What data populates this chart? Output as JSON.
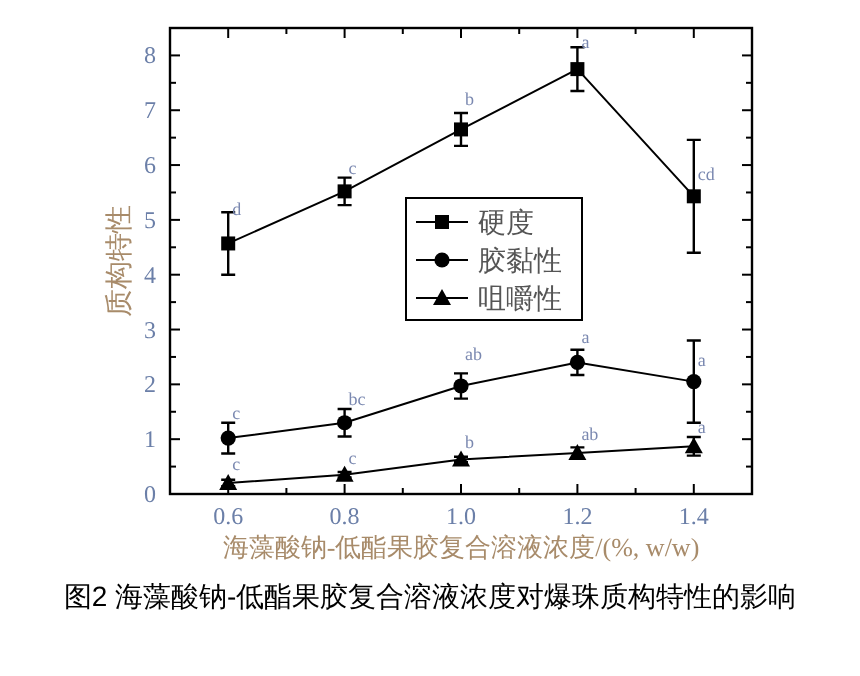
{
  "chart_data": {
    "type": "line",
    "title": "图2  海藻酸钠-低酯果胶复合溶液浓度对爆珠质构特性的影响",
    "xlabel": "海藻酸钠-低酯果胶复合溶液浓度/(%, w/w)",
    "ylabel": "质构特性",
    "x": [
      0.6,
      0.8,
      1.0,
      1.2,
      1.4
    ],
    "series": [
      {
        "name": "硬度",
        "color": "#000000",
        "marker": "square",
        "values": [
          4.57,
          5.52,
          6.65,
          7.75,
          5.43
        ],
        "errors": [
          0.57,
          0.25,
          0.3,
          0.4,
          1.03
        ]
      },
      {
        "name": "胶黏性",
        "color": "#000000",
        "marker": "circle",
        "values": [
          1.02,
          1.3,
          1.97,
          2.4,
          2.05
        ],
        "errors": [
          0.28,
          0.25,
          0.23,
          0.23,
          0.75
        ]
      },
      {
        "name": "咀嚼性",
        "color": "#000000",
        "marker": "triangle",
        "values": [
          0.2,
          0.35,
          0.63,
          0.75,
          0.87
        ],
        "errors": [
          0.06,
          0.05,
          0.05,
          0.1,
          0.17
        ]
      }
    ],
    "xlim": [
      0.5,
      1.5
    ],
    "ylim": [
      0,
      8.5
    ],
    "xticks": [
      {
        "value": 0.6,
        "label": "0.6"
      },
      {
        "value": 0.7,
        "label": null
      },
      {
        "value": 0.8,
        "label": "0.8"
      },
      {
        "value": 0.9,
        "label": null
      },
      {
        "value": 1.0,
        "label": "1.0"
      },
      {
        "value": 1.1,
        "label": null
      },
      {
        "value": 1.2,
        "label": "1.2"
      },
      {
        "value": 1.3,
        "label": null
      },
      {
        "value": 1.4,
        "label": "1.4"
      }
    ],
    "yticks": [
      0,
      {
        "value": 0.5,
        "label": null
      },
      1,
      {
        "value": 1.5,
        "label": null
      },
      2,
      {
        "value": 2.5,
        "label": null
      },
      3,
      {
        "value": 3.5,
        "label": null
      },
      4,
      {
        "value": 4.5,
        "label": null
      },
      5,
      {
        "value": 5.5,
        "label": null
      },
      6,
      {
        "value": 6.5,
        "label": null
      },
      7,
      {
        "value": 7.5,
        "label": null
      },
      8
    ],
    "grid": false,
    "legend": "center",
    "line_style": "solid",
    "annotations": [
      {
        "text": "d",
        "x": 0.6,
        "y": 5.02
      },
      {
        "text": "c",
        "x": 0.8,
        "y": 5.77
      },
      {
        "text": "b",
        "x": 1.0,
        "y": 7.03
      },
      {
        "text": "a",
        "x": 1.2,
        "y": 8.07
      },
      {
        "text": "cd",
        "x": 1.4,
        "y": 5.65
      },
      {
        "text": "c",
        "x": 0.6,
        "y": 1.3
      },
      {
        "text": "bc",
        "x": 0.8,
        "y": 1.55
      },
      {
        "text": "ab",
        "x": 1.0,
        "y": 2.38
      },
      {
        "text": "a",
        "x": 1.2,
        "y": 2.69
      },
      {
        "text": "a",
        "x": 1.4,
        "y": 2.26
      },
      {
        "text": "c",
        "x": 0.6,
        "y": 0.36
      },
      {
        "text": "c",
        "x": 0.8,
        "y": 0.48
      },
      {
        "text": "b",
        "x": 1.0,
        "y": 0.76
      },
      {
        "text": "ab",
        "x": 1.2,
        "y": 0.92
      },
      {
        "text": "a",
        "x": 1.4,
        "y": 1.04
      }
    ]
  }
}
